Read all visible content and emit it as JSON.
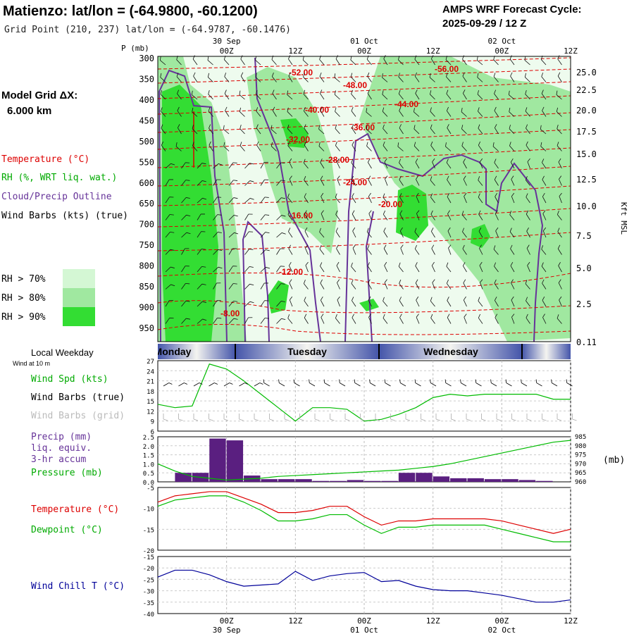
{
  "header": {
    "title": "Matienzo:  lat/lon = (-64.9800, -60.1200)",
    "subtitle": "Grid Point (210, 237) lat/lon = (-64.9787, -60.1476)",
    "cycle_label": "AMPS WRF Forecast Cycle:",
    "cycle_value": "2025-09-29 / 12  Z"
  },
  "left_panel": {
    "model_grid_label": "Model Grid ΔX:",
    "model_grid_value": "6.000 km",
    "legend_temperature": "Temperature (°C)",
    "legend_rh": "RH (%, WRT liq. wat.)",
    "legend_cloud": "Cloud/Precip Outline",
    "legend_wind": "Wind Barbs (kts) (true)",
    "rh_levels": [
      {
        "label": "RH > 70%",
        "color": "#d4f7d4"
      },
      {
        "label": "RH > 80%",
        "color": "#a0e8a0"
      },
      {
        "label": "RH > 90%",
        "color": "#33dd33"
      }
    ],
    "local_weekday_label": "Local Weekday",
    "wind_at_label": "Wind at 10 m"
  },
  "colors": {
    "temperature": "#dd0000",
    "rh_green": "#00bb00",
    "cloud": "#663399",
    "precip_bar": "#5a1f80",
    "wind_chill": "#000099",
    "weekday_band": "#5566bb"
  },
  "chart_data": [
    {
      "type": "heatmap",
      "title": "Time-height cross section",
      "ylabel": "P (mb)",
      "y2label": "Kft MSL",
      "y_ticks": [
        "300",
        "350",
        "400",
        "450",
        "500",
        "550",
        "600",
        "650",
        "700",
        "750",
        "800",
        "850",
        "900",
        "950"
      ],
      "y2_ticks": [
        "25.0",
        "22.5",
        "20.0",
        "17.5",
        "15.0",
        "12.5",
        "10.0",
        "7.5",
        "5.0",
        "2.5",
        "0.11"
      ],
      "x_ticks_top": [
        "00Z",
        "12Z",
        "00Z",
        "12Z",
        "00Z",
        "12Z"
      ],
      "date_labels_top": [
        "30 Sep",
        "01 Oct",
        "02 Oct"
      ],
      "temperature_contour_labels": [
        "-52.00",
        "-48.00",
        "-44.00",
        "-40.00",
        "-56.00",
        "-36.00",
        "-32.00",
        "-28.00",
        "-24.00",
        "-20.00",
        "-16.00",
        "-12.00",
        "-8.00"
      ]
    },
    {
      "type": "line",
      "title": "Wind Spd (kts)",
      "legend": [
        "Wind Spd (kts)",
        "Wind Barbs (true)",
        "Wind Barbs (grid)"
      ],
      "weekday_labels": [
        "Monday",
        "Tuesday",
        "Wednesday"
      ],
      "y_ticks": [
        "27",
        "24",
        "21",
        "18",
        "15",
        "12",
        "9",
        "6"
      ],
      "ylim": [
        6,
        27
      ],
      "x_hours": [
        -12,
        -9,
        -6,
        -3,
        0,
        3,
        6,
        9,
        12,
        15,
        18,
        21,
        24,
        27,
        30,
        33,
        36,
        39,
        42,
        45,
        48,
        51,
        54,
        57,
        60
      ],
      "values": [
        14,
        13,
        13.5,
        26,
        24.5,
        21,
        17,
        13,
        9,
        13,
        13,
        12.5,
        9,
        9.5,
        11,
        13,
        16,
        17,
        16.5,
        17,
        17,
        17,
        17,
        15.5,
        15.5
      ]
    },
    {
      "type": "bar",
      "title": "Precip (mm) liq. equiv. 3-hr accum",
      "legend": [
        "Precip (mm)",
        "liq. equiv.",
        "3-hr accum",
        "Pressure (mb)"
      ],
      "y_ticks": [
        "2.5",
        "2.0",
        "1.5",
        "1.0",
        "0.5",
        "0.0"
      ],
      "ylim": [
        0,
        2.5
      ],
      "y2_ticks": [
        "985",
        "980",
        "975",
        "970",
        "965",
        "960"
      ],
      "y2lim": [
        960,
        985
      ],
      "x_hours_start": [
        -9,
        -6,
        -3,
        0,
        3,
        6,
        9,
        12,
        15,
        18,
        21,
        24,
        27,
        30,
        33,
        36,
        39,
        42,
        45,
        48,
        51,
        54,
        57
      ],
      "precip_values": [
        0.5,
        0.5,
        2.4,
        2.3,
        0.35,
        0.15,
        0.15,
        0.15,
        0.05,
        0.05,
        0.1,
        0.05,
        0.05,
        0.5,
        0.5,
        0.3,
        0.2,
        0.2,
        0.15,
        0.15,
        0.1,
        0.05,
        0.0
      ],
      "pressure_x_hours": [
        -12,
        -9,
        -6,
        -3,
        0,
        3,
        6,
        9,
        12,
        15,
        18,
        21,
        24,
        27,
        30,
        33,
        36,
        39,
        42,
        45,
        48,
        51,
        54,
        57,
        60
      ],
      "pressure_values": [
        970,
        966,
        963,
        962,
        961,
        961.5,
        962,
        963,
        963.5,
        964,
        964.5,
        965,
        965.5,
        966,
        966.5,
        967.5,
        968.5,
        970,
        972,
        974,
        976,
        978,
        980,
        982,
        983
      ]
    },
    {
      "type": "line",
      "title": "Temperature / Dewpoint",
      "legend": [
        "Temperature (°C)",
        "Dewpoint (°C)"
      ],
      "y_ticks": [
        "-5",
        "-10",
        "-15",
        "-20"
      ],
      "ylim": [
        -20,
        -5
      ],
      "series": [
        {
          "name": "Temperature (°C)",
          "x_hours": [
            -12,
            -9,
            -6,
            -3,
            0,
            3,
            6,
            9,
            12,
            15,
            18,
            21,
            24,
            27,
            30,
            33,
            36,
            39,
            42,
            45,
            48,
            51,
            54,
            57,
            60
          ],
          "values": [
            -8.5,
            -7,
            -6.5,
            -6,
            -6,
            -7.5,
            -9,
            -11,
            -11,
            -10.5,
            -9.5,
            -9.5,
            -12,
            -14,
            -13,
            -13,
            -12.5,
            -12.5,
            -12.5,
            -12.5,
            -13,
            -14,
            -15,
            -16,
            -15
          ]
        },
        {
          "name": "Dewpoint (°C)",
          "x_hours": [
            -12,
            -9,
            -6,
            -3,
            0,
            3,
            6,
            9,
            12,
            15,
            18,
            21,
            24,
            27,
            30,
            33,
            36,
            39,
            42,
            45,
            48,
            51,
            54,
            57,
            60
          ],
          "values": [
            -9.5,
            -8,
            -7.5,
            -7,
            -7,
            -8.5,
            -10.5,
            -13,
            -13,
            -12.5,
            -11.5,
            -11.5,
            -14,
            -16,
            -14.5,
            -14.5,
            -14,
            -14,
            -14,
            -14,
            -15,
            -16,
            -17,
            -18,
            -18
          ]
        }
      ]
    },
    {
      "type": "line",
      "title": "Wind Chill T (°C)",
      "legend": [
        "Wind Chill T (°C)"
      ],
      "y_ticks": [
        "-15",
        "-20",
        "-25",
        "-30",
        "-35",
        "-40"
      ],
      "ylim": [
        -40,
        -15
      ],
      "x_hours": [
        -12,
        -9,
        -6,
        -3,
        0,
        3,
        6,
        9,
        12,
        15,
        18,
        21,
        24,
        27,
        30,
        33,
        36,
        39,
        42,
        45,
        48,
        51,
        54,
        57,
        60
      ],
      "values": [
        -24,
        -21,
        -21,
        -23,
        -26,
        -28,
        -27.5,
        -27,
        -21.5,
        -25.5,
        -23.5,
        -22.5,
        -22,
        -26,
        -25.5,
        -28,
        -29.5,
        -30,
        -30,
        -31,
        -32,
        -33.5,
        -35,
        -35,
        -34
      ]
    },
    {
      "type": "axis",
      "x_ticks_bottom": [
        "00Z",
        "12Z",
        "00Z",
        "12Z",
        "00Z",
        "12Z"
      ],
      "date_labels_bottom": [
        "30 Sep",
        "01 Oct",
        "02 Oct"
      ]
    }
  ]
}
